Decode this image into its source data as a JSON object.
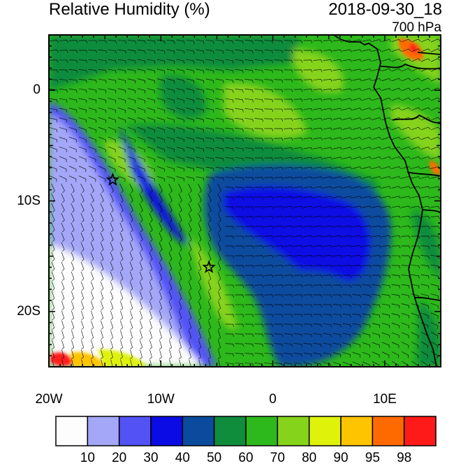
{
  "header": {
    "title": "Relative Humidity (%)",
    "datetime": "2018-09-30_18",
    "level": "700 hPa"
  },
  "axes": {
    "lat_ticks": [
      {
        "value": 0,
        "label": "0"
      },
      {
        "value": -10,
        "label": "10S"
      },
      {
        "value": -20,
        "label": "20S"
      }
    ],
    "lon_ticks": [
      {
        "value": -20,
        "label": "20W"
      },
      {
        "value": -10,
        "label": "10W"
      },
      {
        "value": 0,
        "label": "0"
      },
      {
        "value": 10,
        "label": "10E"
      }
    ],
    "lon_range": [
      -20,
      15
    ],
    "lat_range": [
      -25,
      5
    ]
  },
  "colorbar": {
    "colors": [
      "#fdfdfd",
      "#a4a7f7",
      "#5252f5",
      "#0b0be4",
      "#0b4b9e",
      "#0f8c3c",
      "#2db81b",
      "#86d31c",
      "#dff20a",
      "#ffc400",
      "#ff6a00",
      "#ff1a1a"
    ],
    "labels": [
      "10",
      "20",
      "30",
      "40",
      "50",
      "60",
      "70",
      "80",
      "90",
      "95",
      "98"
    ]
  },
  "markers": [
    {
      "name": "star-marker-1",
      "lon": -14.3,
      "lat": -8.1
    },
    {
      "name": "star-marker-2",
      "lon": -5.7,
      "lat": -16.0
    }
  ],
  "colors": {
    "moist_high": "#2db81b",
    "moist_mid": "#0f8c3c",
    "dry_core": "#0b0be4",
    "very_dry": "#fdfdfd"
  }
}
